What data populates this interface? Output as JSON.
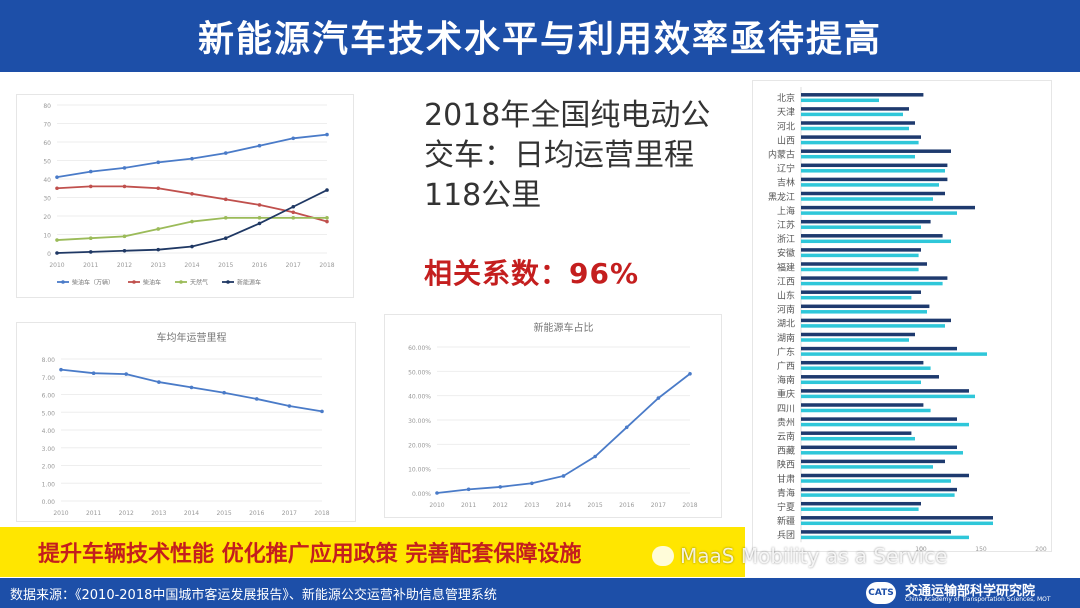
{
  "title": "新能源汽车技术水平与利用效率亟待提高",
  "headline": "2018年全国纯电动公交车：日均运营里程118公里",
  "correlation": "相关系数：96%",
  "slogan": "提升车辆技术性能  优化推广应用政策  完善配套保障设施",
  "footer": {
    "source": "数据来源：《2010-2018中国城市客运发展报告》、新能源公交运营补助信息管理系统",
    "org": "交通运输部科学研究院",
    "org_en": "China Academy of Transportation Sciences, MOT",
    "logo": "CATS"
  },
  "watermark": "MaaS Mobility as a Service",
  "colors": {
    "blue": "#1d4fa8",
    "yellow": "#ffe600",
    "red": "#c41e1e",
    "cyan": "#2fc7d9",
    "navy": "#1e3a6e"
  },
  "chart_data": [
    {
      "type": "line",
      "categories": [
        "2010",
        "2011",
        "2012",
        "2013",
        "2014",
        "2015",
        "2016",
        "2017",
        "2018"
      ],
      "ylim": [
        0,
        80
      ],
      "yticks": [
        0,
        10,
        20,
        30,
        40,
        50,
        60,
        70,
        80
      ],
      "legend_position": "bottom",
      "series": [
        {
          "name": "柴油车（万辆）",
          "values": [
            41,
            44,
            46,
            49,
            51,
            54,
            58,
            62,
            64
          ],
          "color": "#4a7bc8"
        },
        {
          "name": "柴油车",
          "values": [
            35,
            36,
            36,
            35,
            32,
            29,
            26,
            22,
            17
          ],
          "color": "#c0504d"
        },
        {
          "name": "天然气",
          "values": [
            7,
            8,
            9,
            13,
            17,
            19,
            19,
            19,
            19
          ],
          "color": "#9bbb59"
        },
        {
          "name": "新能源车",
          "values": [
            0,
            0.6,
            1.2,
            1.8,
            3.5,
            8,
            16,
            25,
            34
          ],
          "color": "#1f3864"
        }
      ]
    },
    {
      "type": "line",
      "title": "车均年运营里程",
      "categories": [
        "2010",
        "2011",
        "2012",
        "2013",
        "2014",
        "2015",
        "2016",
        "2017",
        "2018"
      ],
      "ylim": [
        0,
        8
      ],
      "yticks": [
        "0.00",
        "1.00",
        "2.00",
        "3.00",
        "4.00",
        "5.00",
        "6.00",
        "7.00",
        "8.00"
      ],
      "series": [
        {
          "values": [
            7.4,
            7.2,
            7.15,
            6.7,
            6.4,
            6.1,
            5.75,
            5.35,
            5.05
          ],
          "color": "#4a7bc8"
        }
      ]
    },
    {
      "type": "line",
      "title": "新能源车占比",
      "categories": [
        "2010",
        "2011",
        "2012",
        "2013",
        "2014",
        "2015",
        "2016",
        "2017",
        "2018"
      ],
      "ylim": [
        0,
        60
      ],
      "yticks": [
        "0.00%",
        "10.00%",
        "20.00%",
        "30.00%",
        "40.00%",
        "50.00%",
        "60.00%"
      ],
      "series": [
        {
          "values": [
            0,
            1.5,
            2.5,
            4,
            7,
            15,
            27,
            39,
            49
          ],
          "color": "#4a7bc8"
        }
      ]
    },
    {
      "type": "bar",
      "orientation": "horizontal",
      "categories": [
        "北京",
        "天津",
        "河北",
        "山西",
        "内蒙古",
        "辽宁",
        "吉林",
        "黑龙江",
        "上海",
        "江苏",
        "浙江",
        "安徽",
        "福建",
        "江西",
        "山东",
        "河南",
        "湖北",
        "湖南",
        "广东",
        "广西",
        "海南",
        "重庆",
        "四川",
        "贵州",
        "云南",
        "西藏",
        "陕西",
        "甘肃",
        "青海",
        "宁夏",
        "新疆",
        "兵团"
      ],
      "xticks": [
        "100",
        "150",
        "200"
      ],
      "series": [
        {
          "name": "navy",
          "color": "#1e3a6e",
          "values": [
            102,
            90,
            95,
            100,
            125,
            122,
            122,
            120,
            145,
            108,
            118,
            100,
            105,
            122,
            100,
            107,
            125,
            95,
            130,
            102,
            115,
            140,
            102,
            130,
            92,
            130,
            120,
            140,
            130,
            100,
            160,
            125
          ]
        },
        {
          "name": "cyan",
          "color": "#2fc7d9",
          "values": [
            65,
            85,
            90,
            98,
            95,
            120,
            115,
            110,
            130,
            100,
            125,
            98,
            98,
            118,
            92,
            105,
            120,
            90,
            155,
            108,
            100,
            145,
            108,
            140,
            95,
            135,
            110,
            125,
            128,
            98,
            160,
            140
          ]
        }
      ]
    }
  ]
}
